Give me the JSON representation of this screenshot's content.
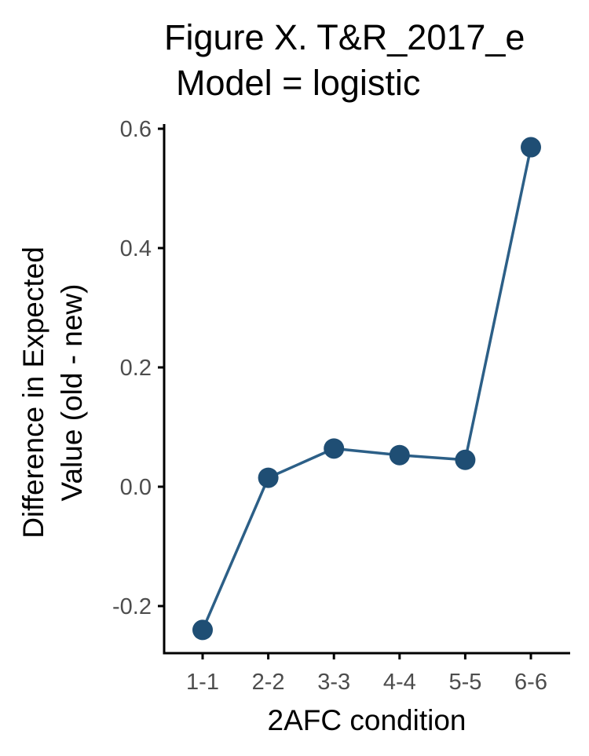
{
  "chart_data": {
    "type": "line",
    "title_lines": [
      "Figure X. T&R_2017_e",
      "Model = logistic"
    ],
    "xlabel": "2AFC condition",
    "ylabel_lines": [
      "Difference in Expected",
      "Value (old - new)"
    ],
    "categories": [
      "1-1",
      "2-2",
      "3-3",
      "4-4",
      "5-5",
      "6-6"
    ],
    "values": [
      -0.24,
      0.015,
      0.064,
      0.053,
      0.045,
      0.569
    ],
    "yticks": [
      -0.2,
      0.0,
      0.2,
      0.4,
      0.6
    ],
    "ytick_labels": [
      "-0.2",
      "0.0",
      "0.2",
      "0.4",
      "0.6"
    ],
    "ylim": [
      -0.28,
      0.61
    ],
    "line_color": "#2c5f87",
    "point_color": "#1f4e74",
    "grid": false,
    "legend": "none"
  }
}
